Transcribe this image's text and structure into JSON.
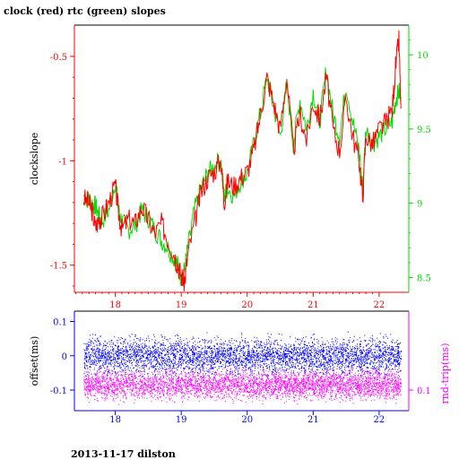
{
  "title": "clock (red) rtc (green) slopes",
  "footer": "2013-11-17 dilston",
  "colors": {
    "clock": "#ff0000",
    "rtc": "#00dd00",
    "offset": "#0000ff",
    "rndtrip": "#ff00ff",
    "axis": "#000000"
  },
  "chart_data": [
    {
      "type": "line",
      "title": "clock (red) rtc (green) slopes",
      "xlabel": "",
      "ylabel": "clockslope",
      "y2label": "",
      "xlim": [
        17.38,
        22.45
      ],
      "ylim": [
        -1.63,
        -0.35
      ],
      "y2lim": [
        8.4,
        10.2
      ],
      "xticks": [
        18,
        19,
        20,
        21,
        22
      ],
      "yticks": [
        -1.5,
        -1,
        -0.5
      ],
      "y2ticks": [
        8.5,
        9,
        9.5,
        10
      ],
      "ytick_labels": [
        "-1.5",
        "-1",
        "-0.5"
      ],
      "y2tick_labels": [
        "8.5",
        "9",
        "9.5",
        "10"
      ],
      "xtick_labels": [
        "18",
        "19",
        "20",
        "21",
        "22"
      ],
      "grid": false,
      "series": [
        {
          "axis": "left",
          "color": "#ff0000",
          "x": [
            17.52,
            17.6,
            17.65,
            17.7,
            17.75,
            17.8,
            17.9,
            18.0,
            18.05,
            18.1,
            18.2,
            18.3,
            18.4,
            18.5,
            18.6,
            18.7,
            18.8,
            18.9,
            18.95,
            19.0,
            19.05,
            19.1,
            19.2,
            19.3,
            19.4,
            19.5,
            19.6,
            19.65,
            19.7,
            19.8,
            19.9,
            20.0,
            20.1,
            20.2,
            20.3,
            20.4,
            20.5,
            20.6,
            20.7,
            20.8,
            20.9,
            21.0,
            21.1,
            21.2,
            21.3,
            21.4,
            21.5,
            21.6,
            21.7,
            21.75,
            21.8,
            21.9,
            22.0,
            22.1,
            22.2,
            22.25,
            22.3,
            22.33
          ],
          "values": [
            -1.18,
            -1.2,
            -1.24,
            -1.32,
            -1.28,
            -1.27,
            -1.2,
            -1.12,
            -1.25,
            -1.33,
            -1.28,
            -1.3,
            -1.22,
            -1.28,
            -1.35,
            -1.3,
            -1.38,
            -1.45,
            -1.5,
            -1.55,
            -1.58,
            -1.45,
            -1.3,
            -1.15,
            -1.08,
            -1.05,
            -1.0,
            -1.2,
            -1.1,
            -1.12,
            -1.08,
            -1.05,
            -0.95,
            -0.78,
            -0.6,
            -0.72,
            -0.85,
            -0.6,
            -0.95,
            -0.78,
            -0.9,
            -0.72,
            -0.8,
            -0.6,
            -0.85,
            -0.95,
            -0.7,
            -0.88,
            -1.0,
            -1.18,
            -0.88,
            -0.92,
            -0.85,
            -0.82,
            -0.75,
            -0.55,
            -0.42,
            -0.75
          ]
        },
        {
          "axis": "right",
          "color": "#00dd00",
          "x": [
            17.52,
            17.6,
            17.65,
            17.7,
            17.75,
            17.8,
            17.9,
            18.0,
            18.05,
            18.1,
            18.2,
            18.3,
            18.4,
            18.5,
            18.6,
            18.7,
            18.8,
            18.9,
            18.95,
            19.0,
            19.05,
            19.1,
            19.2,
            19.3,
            19.4,
            19.5,
            19.6,
            19.65,
            19.7,
            19.8,
            19.9,
            20.0,
            20.1,
            20.2,
            20.3,
            20.4,
            20.5,
            20.6,
            20.7,
            20.8,
            20.9,
            21.0,
            21.1,
            21.2,
            21.3,
            21.4,
            21.5,
            21.6,
            21.7,
            21.75,
            21.8,
            21.9,
            22.0,
            22.1,
            22.2,
            22.25,
            22.3,
            22.33
          ],
          "values": [
            9.05,
            9.02,
            9.0,
            8.98,
            8.92,
            8.88,
            8.95,
            9.15,
            8.95,
            8.88,
            8.82,
            8.85,
            8.95,
            8.9,
            8.82,
            8.75,
            8.7,
            8.62,
            8.58,
            8.5,
            8.55,
            8.7,
            8.95,
            9.1,
            9.2,
            9.25,
            9.3,
            9.05,
            9.1,
            9.05,
            9.15,
            9.2,
            9.4,
            9.6,
            9.85,
            9.65,
            9.45,
            9.8,
            9.4,
            9.7,
            9.5,
            9.75,
            9.55,
            9.9,
            9.6,
            9.45,
            9.8,
            9.55,
            9.35,
            9.1,
            9.5,
            9.4,
            9.45,
            9.5,
            9.55,
            9.7,
            9.75,
            9.72
          ]
        }
      ]
    },
    {
      "type": "scatter",
      "xlabel": "",
      "ylabel": "offset(ms)",
      "y2label": "rnd-trip(ms)",
      "xlim": [
        17.38,
        22.45
      ],
      "ylim": [
        -0.16,
        0.13
      ],
      "y2lim": [
        0.07,
        0.215
      ],
      "xticks": [
        18,
        19,
        20,
        21,
        22
      ],
      "xtick_labels": [
        "18",
        "19",
        "20",
        "21",
        "22"
      ],
      "yticks": [
        -0.1,
        0,
        0.1
      ],
      "ytick_labels": [
        "-0.1",
        "0",
        "0.1"
      ],
      "y2ticks": [
        0.1
      ],
      "y2tick_labels": [
        "0.1"
      ],
      "grid": false,
      "series": [
        {
          "axis": "left",
          "color": "#0000ff",
          "x_range": [
            17.52,
            22.33
          ],
          "center": 0.0,
          "spread": 0.025
        },
        {
          "axis": "right",
          "color": "#ff00ff",
          "x_range": [
            17.52,
            22.33
          ],
          "center": 0.108,
          "spread": 0.01
        }
      ]
    }
  ]
}
